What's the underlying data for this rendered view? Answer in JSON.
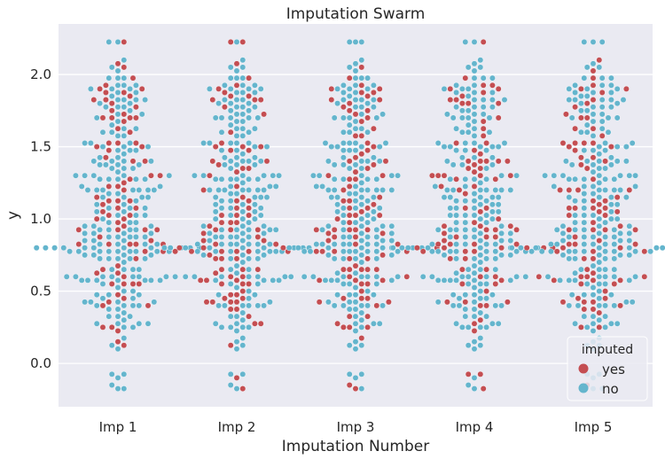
{
  "chart_data": {
    "type": "scatter",
    "subtype": "swarm",
    "title": "Imputation Swarm",
    "xlabel": "Imputation Number",
    "ylabel": "y",
    "categories": [
      "Imp 1",
      "Imp 2",
      "Imp 3",
      "Imp 4",
      "Imp 5"
    ],
    "ylim": [
      -0.3,
      2.35
    ],
    "yticks": [
      0.0,
      0.5,
      1.0,
      1.5,
      2.0
    ],
    "ytick_labels": [
      "0.0",
      "0.5",
      "1.0",
      "1.5",
      "2.0"
    ],
    "grid": true,
    "legend": {
      "title": "imputed",
      "position": "bottom-right",
      "entries": [
        {
          "label": "yes",
          "color": "#c44e52"
        },
        {
          "label": "no",
          "color": "#64b5cd"
        }
      ]
    },
    "colors": {
      "yes": "#c44e52",
      "no": "#64b5cd",
      "background": "#eaeaf2",
      "grid": "#ffffff"
    },
    "points_per_category": 300,
    "approx_imputed_share": 0.3,
    "y_min_value": -0.17,
    "y_max_value": 2.23
  }
}
